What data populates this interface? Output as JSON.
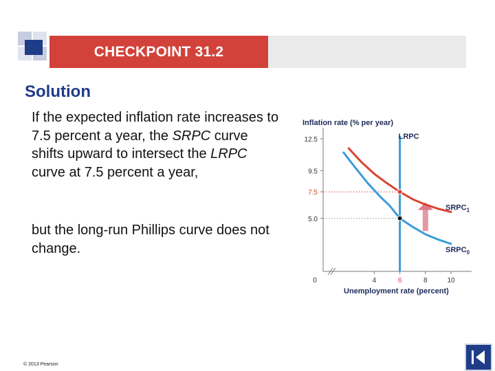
{
  "header": {
    "title": "CHECKPOINT 31.2"
  },
  "content": {
    "heading": "Solution",
    "para1": {
      "t1": "If the expected inflation rate increases to 7.5 percent a year, the ",
      "t2": "SRPC",
      "t3": " curve shifts upward to intersect the ",
      "t4": "LRPC",
      "t5": " curve at 7.5 percent a year,"
    },
    "para2": "but the long-run Phillips curve does not change."
  },
  "footer": {
    "copyright": "© 2013 Pearson"
  },
  "colors": {
    "accent_red": "#d2423a",
    "navy": "#1f3c88",
    "curve_blue": "#3a9bd8",
    "curve_red": "#d9432f"
  },
  "chart_data": {
    "type": "line",
    "ylabel": "Inflation rate (% per year)",
    "xlabel": "Unemployment rate (percent)",
    "x_ticks": [
      "0",
      "4",
      "6",
      "8",
      "10"
    ],
    "y_ticks": [
      "12.5",
      "9.5",
      "7.5",
      "5.0"
    ],
    "x_range": [
      0,
      10
    ],
    "y_range": [
      0,
      12.5
    ],
    "lrpc": {
      "label": "LRPC",
      "x": 6
    },
    "series": [
      {
        "name": "SRPC1",
        "label_main": "SRPC",
        "label_sub": "1",
        "color": "#d9432f",
        "x": [
          2,
          3,
          4,
          5,
          6,
          7,
          8,
          9,
          10
        ],
        "y": [
          11.6,
          10.3,
          9.2,
          8.3,
          7.5,
          6.8,
          6.3,
          5.9,
          5.6
        ]
      },
      {
        "name": "SRPC0",
        "label_main": "SRPC",
        "label_sub": "0",
        "color": "#3a9bd8",
        "x": [
          1.6,
          2.5,
          3.5,
          4.5,
          5.2,
          6,
          7,
          8,
          9,
          10
        ],
        "y": [
          11.2,
          9.8,
          8.3,
          7.0,
          6.2,
          5.0,
          4.2,
          3.5,
          3.0,
          2.6
        ]
      }
    ],
    "points": [
      {
        "x": 6,
        "y": 7.5,
        "color": "#d9432f"
      },
      {
        "x": 6,
        "y": 5.0,
        "color": "#111111"
      }
    ],
    "shift_arrow": {
      "x": 8,
      "from_y": 3.8,
      "to_y": 6.5
    }
  }
}
